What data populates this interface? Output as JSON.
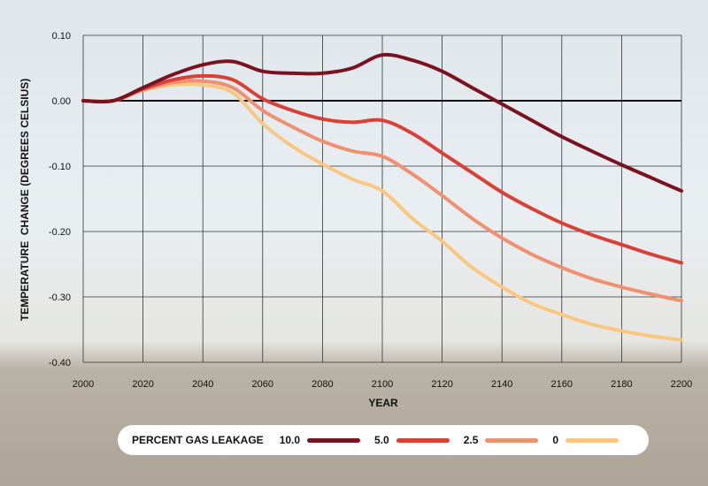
{
  "chart_data": {
    "type": "line",
    "xlabel": "YEAR",
    "ylabel": "TEMPERATURE  CHANGE (DEGREES CELSIUS)",
    "xlim": [
      2000,
      2200
    ],
    "ylim": [
      -0.4,
      0.1
    ],
    "x_ticks": [
      "2000",
      "2020",
      "2040",
      "2060",
      "2080",
      "2100",
      "2120",
      "2140",
      "2160",
      "2180",
      "2200"
    ],
    "y_ticks": [
      "0.10",
      "0.00",
      "-0.10",
      "-0.20",
      "-0.30",
      "-0.40"
    ],
    "grid": true,
    "x": [
      2000,
      2010,
      2020,
      2030,
      2040,
      2050,
      2060,
      2070,
      2080,
      2090,
      2100,
      2110,
      2120,
      2130,
      2140,
      2150,
      2160,
      2170,
      2180,
      2190,
      2200
    ],
    "series": [
      {
        "name": "10.0",
        "color": "#7a1220",
        "values": [
          0.0,
          0.0,
          0.02,
          0.04,
          0.055,
          0.06,
          0.045,
          0.042,
          0.042,
          0.05,
          0.07,
          0.062,
          0.045,
          0.02,
          -0.005,
          -0.03,
          -0.055,
          -0.077,
          -0.098,
          -0.118,
          -0.138
        ]
      },
      {
        "name": "5.0",
        "color": "#d94138",
        "values": [
          0.0,
          0.0,
          0.018,
          0.032,
          0.038,
          0.032,
          0.003,
          -0.015,
          -0.028,
          -0.033,
          -0.03,
          -0.05,
          -0.08,
          -0.11,
          -0.14,
          -0.165,
          -0.187,
          -0.205,
          -0.22,
          -0.235,
          -0.248
        ]
      },
      {
        "name": "2.5",
        "color": "#ef9070",
        "values": [
          0.0,
          0.0,
          0.017,
          0.028,
          0.03,
          0.02,
          -0.015,
          -0.04,
          -0.062,
          -0.077,
          -0.085,
          -0.112,
          -0.145,
          -0.18,
          -0.21,
          -0.235,
          -0.255,
          -0.272,
          -0.285,
          -0.296,
          -0.306
        ]
      },
      {
        "name": "0",
        "color": "#f8c883",
        "values": [
          0.0,
          0.0,
          0.016,
          0.024,
          0.024,
          0.012,
          -0.035,
          -0.07,
          -0.097,
          -0.12,
          -0.138,
          -0.18,
          -0.215,
          -0.255,
          -0.285,
          -0.31,
          -0.327,
          -0.342,
          -0.352,
          -0.36,
          -0.366
        ]
      }
    ],
    "legend": {
      "title": "PERCENT GAS LEAKAGE",
      "placement": "bottom"
    }
  }
}
